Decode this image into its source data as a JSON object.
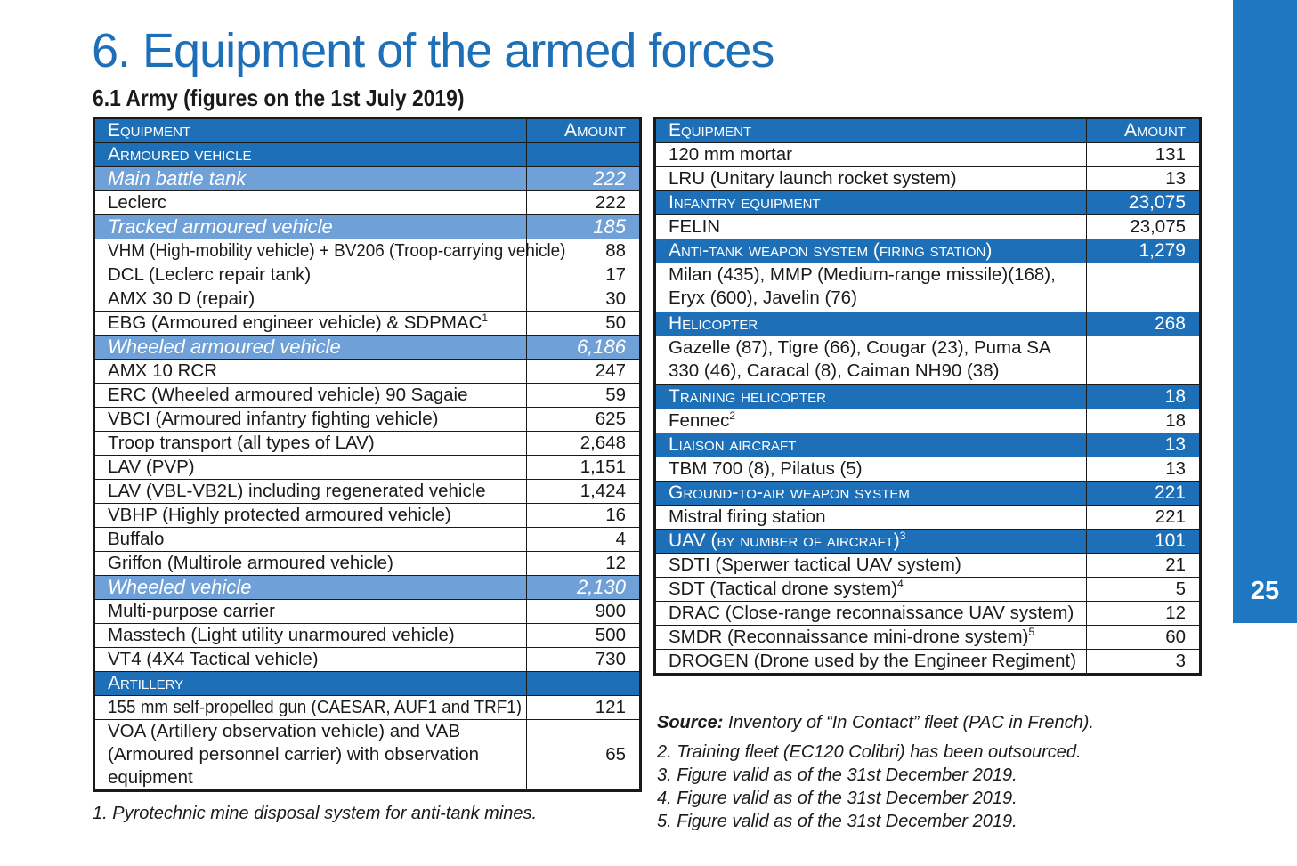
{
  "title": "6. Equipment of the armed forces",
  "subtitle": "6.1 Army (figures on the 1st July 2019)",
  "page_number": "25",
  "colors": {
    "header_blue": "#1d6fb8",
    "subheader_blue": "#6fa0d8",
    "sidebar_blue": "#1d78c1"
  },
  "left_table": {
    "header": {
      "equipment": "Equipment",
      "amount": "Amount"
    },
    "rows": [
      {
        "type": "cat",
        "label": "Armoured vehicle",
        "amount": ""
      },
      {
        "type": "sub",
        "label": "Main battle tank",
        "amount": "222"
      },
      {
        "type": "row",
        "label": "Leclerc",
        "amount": "222"
      },
      {
        "type": "sub",
        "label": "Tracked armoured vehicle",
        "amount": "185"
      },
      {
        "type": "row",
        "label": "VHM (High-mobility vehicle) + BV206 (Troop-carrying vehicle)",
        "amount": "88"
      },
      {
        "type": "row",
        "label": "DCL (Leclerc repair tank)",
        "amount": "17"
      },
      {
        "type": "row",
        "label": "AMX 30 D (repair)",
        "amount": "30"
      },
      {
        "type": "row",
        "label": "EBG (Armoured engineer vehicle) & SDPMAC",
        "sup": "1",
        "amount": "50"
      },
      {
        "type": "sub",
        "label": "Wheeled armoured vehicle",
        "amount": "6,186"
      },
      {
        "type": "row",
        "label": "AMX 10 RCR",
        "amount": "247"
      },
      {
        "type": "row",
        "label": "ERC (Wheeled armoured vehicle) 90 Sagaie",
        "amount": "59"
      },
      {
        "type": "row",
        "label": "VBCI (Armoured infantry fighting vehicle)",
        "amount": "625"
      },
      {
        "type": "row",
        "label": "Troop transport (all types of LAV)",
        "amount": "2,648"
      },
      {
        "type": "row",
        "label": "LAV (PVP)",
        "amount": "1,151"
      },
      {
        "type": "row",
        "label": "LAV (VBL-VB2L) including regenerated vehicle",
        "amount": "1,424"
      },
      {
        "type": "row",
        "label": "VBHP (Highly protected armoured vehicle)",
        "amount": "16"
      },
      {
        "type": "row",
        "label": "Buffalo",
        "amount": "4"
      },
      {
        "type": "row",
        "label": "Griffon (Multirole armoured vehicle)",
        "amount": "12"
      },
      {
        "type": "sub",
        "label": "Wheeled vehicle",
        "amount": "2,130"
      },
      {
        "type": "row",
        "label": "Multi-purpose carrier",
        "amount": "900"
      },
      {
        "type": "row",
        "label": "Masstech (Light utility unarmoured vehicle)",
        "amount": "500"
      },
      {
        "type": "row",
        "label": "VT4 (4X4 Tactical vehicle)",
        "amount": "730"
      },
      {
        "type": "cat",
        "label": "Artillery",
        "amount": ""
      },
      {
        "type": "row",
        "label": "155 mm self-propelled gun (CAESAR, AUF1 and TRF1)",
        "amount": "121"
      },
      {
        "type": "wrap",
        "label": "VOA (Artillery observation vehicle) and VAB (Armoured personnel carrier) with observation equipment",
        "amount": "65"
      }
    ]
  },
  "right_table": {
    "header": {
      "equipment": "Equipment",
      "amount": "Amount"
    },
    "rows": [
      {
        "type": "row",
        "label": "120 mm mortar",
        "amount": "131"
      },
      {
        "type": "row",
        "label": "LRU (Unitary launch rocket system)",
        "amount": "13"
      },
      {
        "type": "cat",
        "label": "Infantry equipment",
        "amount": "23,075"
      },
      {
        "type": "row",
        "label": "FELIN",
        "amount": "23,075"
      },
      {
        "type": "cat",
        "label": "Anti-tank weapon system (firing station)",
        "amount": "1,279"
      },
      {
        "type": "wrap",
        "label": "Milan (435), MMP (Medium-range missile)(168), Eryx (600), Javelin (76)",
        "amount": ""
      },
      {
        "type": "cat",
        "label": "Helicopter",
        "amount": "268"
      },
      {
        "type": "wrap",
        "label": "Gazelle (87), Tigre (66), Cougar (23), Puma SA 330 (46), Caracal (8), Caiman NH90 (38)",
        "amount": ""
      },
      {
        "type": "cat",
        "label": "Training helicopter",
        "amount": "18"
      },
      {
        "type": "row",
        "label": "Fennec",
        "sup": "2",
        "amount": "18"
      },
      {
        "type": "cat",
        "label": "Liaison aircraft",
        "amount": "13"
      },
      {
        "type": "row",
        "label": "TBM 700 (8), Pilatus (5)",
        "amount": "13"
      },
      {
        "type": "cat",
        "label": "Ground-to-air weapon system",
        "amount": "221"
      },
      {
        "type": "row",
        "label": "Mistral firing station",
        "amount": "221"
      },
      {
        "type": "cat",
        "label": "UAV (by number of aircraft)",
        "sup": "3",
        "amount": "101"
      },
      {
        "type": "row",
        "label": "SDTI (Sperwer tactical UAV system)",
        "amount": "21"
      },
      {
        "type": "row",
        "label": "SDT (Tactical drone system)",
        "sup": "4",
        "amount": "5"
      },
      {
        "type": "row",
        "label": "DRAC (Close-range reconnaissance UAV system)",
        "amount": "12"
      },
      {
        "type": "row",
        "label": "SMDR (Reconnaissance mini-drone system)",
        "sup": "5",
        "amount": "60"
      },
      {
        "type": "row",
        "label": "DROGEN (Drone used by the Engineer Regiment)",
        "amount": "3"
      }
    ]
  },
  "footnotes_left": [
    "1. Pyrotechnic mine disposal system for anti-tank mines."
  ],
  "source": {
    "label": "Source:",
    "text": "Inventory of “In Contact” fleet (PAC in French)."
  },
  "footnotes_right": [
    "2. Training fleet (EC120 Colibri) has been outsourced.",
    "3. Figure valid as of the 31st December 2019.",
    "4. Figure valid as of the 31st December 2019.",
    "5. Figure valid as of the 31st December 2019."
  ]
}
